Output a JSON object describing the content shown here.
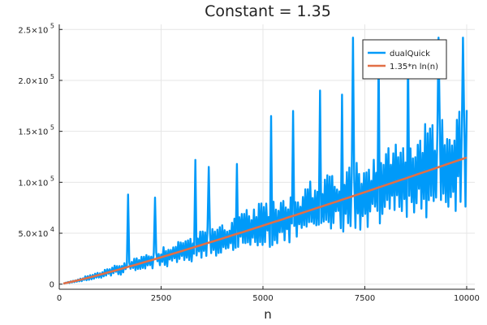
{
  "chart_data": {
    "type": "line",
    "title": "Constant = 1.35",
    "xlabel": "n",
    "ylabel": "",
    "xlim": [
      0,
      10200
    ],
    "ylim": [
      -5000,
      255000
    ],
    "x_ticks": [
      {
        "value": 0,
        "label": "0"
      },
      {
        "value": 2500,
        "label": "2500"
      },
      {
        "value": 5000,
        "label": "5000"
      },
      {
        "value": 7500,
        "label": "7500"
      },
      {
        "value": 10000,
        "label": "10000"
      }
    ],
    "y_ticks": [
      {
        "value": 0,
        "mant": "0",
        "exp": ""
      },
      {
        "value": 50000,
        "mant": "5.0×10",
        "exp": "4"
      },
      {
        "value": 100000,
        "mant": "1.0×10",
        "exp": "5"
      },
      {
        "value": 150000,
        "mant": "1.5×10",
        "exp": "5"
      },
      {
        "value": 200000,
        "mant": "2.0×10",
        "exp": "5"
      },
      {
        "value": 250000,
        "mant": "2.5×10",
        "exp": "5"
      }
    ],
    "grid": true,
    "legend_position": "top-right",
    "series": [
      {
        "name": "dualQuick",
        "color": "#009af9",
        "kind": "noisy",
        "x_start": 100,
        "x_end": 10000,
        "x_step": 30,
        "amplitude_fraction": 0.38,
        "spikes": [
          [
            1700,
            88000
          ],
          [
            2350,
            85000
          ],
          [
            3350,
            122000
          ],
          [
            3680,
            115000
          ],
          [
            4350,
            118000
          ],
          [
            5200,
            165000
          ],
          [
            5750,
            170000
          ],
          [
            6400,
            190000
          ],
          [
            6950,
            186000
          ],
          [
            7200,
            242000
          ],
          [
            7850,
            230000
          ],
          [
            8550,
            228000
          ],
          [
            9300,
            242000
          ],
          [
            9900,
            242000
          ]
        ]
      },
      {
        "name": "1.35*n ln(n)",
        "color": "#e26f46",
        "kind": "nlogn",
        "constant": 1.35,
        "x_start": 100,
        "x_end": 10000
      }
    ]
  }
}
